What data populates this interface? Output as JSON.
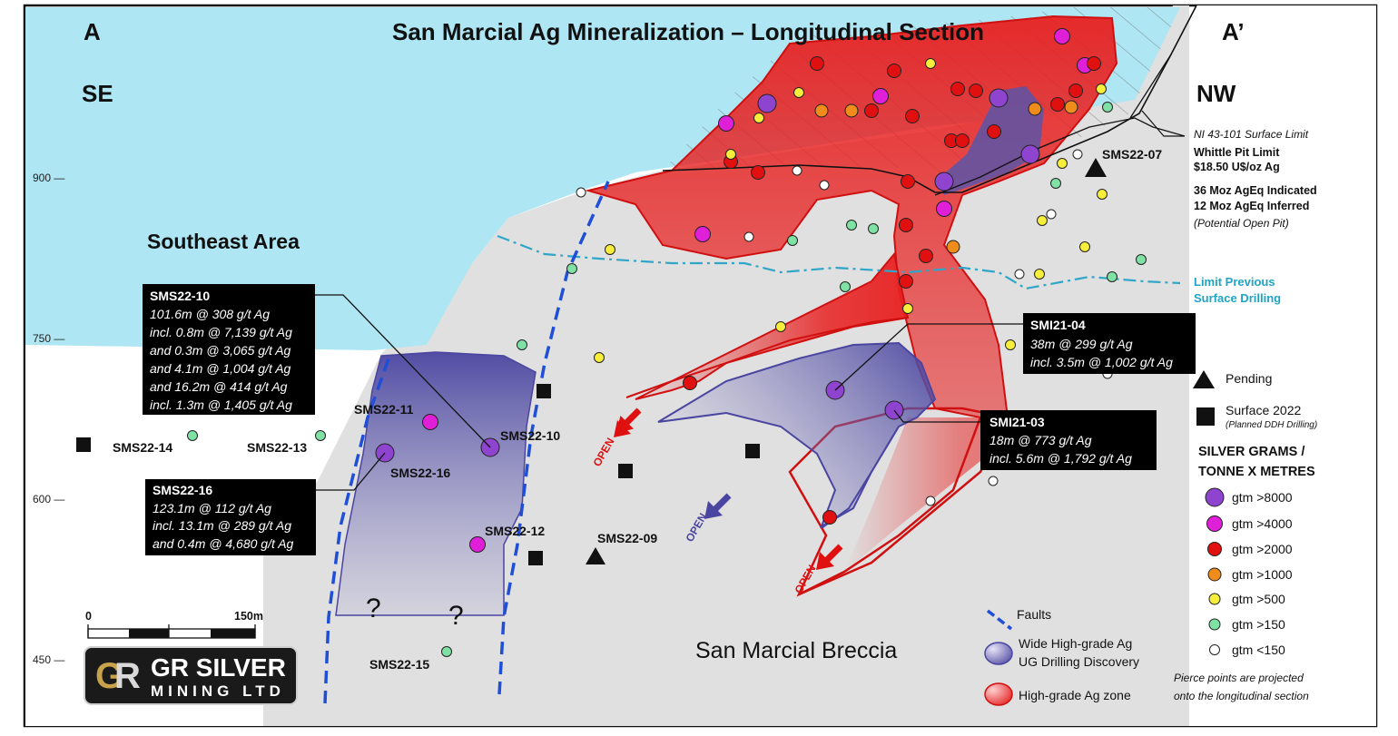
{
  "title": "San Marcial Ag Mineralization – Longitudinal Section",
  "corners": {
    "left": "A",
    "right": "A’",
    "left_dir": "SE",
    "right_dir": "NW"
  },
  "areas": {
    "southeast": "Southeast Area",
    "breccia": "San Marcial Breccia"
  },
  "elevations": [
    "900 —",
    "750 —",
    "600 —",
    "450 —"
  ],
  "scale": {
    "zero": "0",
    "end": "150m"
  },
  "logo": {
    "line1": "GR SILVER",
    "line2": "MINING LTD"
  },
  "pit_notes": {
    "surface_limit": "NI 43-101 Surface Limit",
    "whittle1": "Whittle Pit Limit",
    "whittle2": "$18.50 U$/oz Ag",
    "indicated": "36 Moz AgEq Indicated",
    "inferred": "12 Moz AgEq Inferred",
    "potential": "(Potential Open Pit)"
  },
  "limit_previous": {
    "line1": "Limit Previous",
    "line2": "Surface Drilling"
  },
  "holes": {
    "sms22_07": "SMS22-07",
    "sms22_11": "SMS22-11",
    "sms22_10": "SMS22-10",
    "sms22_16": "SMS22-16",
    "sms22_12": "SMS22-12",
    "sms22_09": "SMS22-09",
    "sms22_14": "SMS22-14",
    "sms22_13": "SMS22-13",
    "sms22_15": "SMS22-15"
  },
  "callouts": {
    "sms22_10": {
      "title": "SMS22-10",
      "lines": [
        "101.6m @ 308 g/t Ag",
        "incl.  0.8m @ 7,139 g/t Ag",
        "and  0.3m @ 3,065 g/t Ag",
        "and  4.1m @ 1,004 g/t Ag",
        "and  16.2m @ 414 g/t Ag",
        "incl.  1.3m @ 1,405 g/t Ag"
      ]
    },
    "sms22_16": {
      "title": "SMS22-16",
      "lines": [
        "123.1m @ 112 g/t Ag",
        "incl. 13.1m @ 289 g/t Ag",
        "and 0.4m @ 4,680 g/t Ag"
      ]
    },
    "smi21_04": {
      "title": "SMI21-04",
      "lines": [
        "38m @ 299 g/t Ag",
        "incl.  3.5m @ 1,002 g/t Ag"
      ]
    },
    "smi21_03": {
      "title": "SMI21-03",
      "lines": [
        "18m @ 773 g/t Ag",
        "incl. 5.6m @ 1,792 g/t Ag"
      ]
    }
  },
  "open_labels": [
    "OPEN",
    "OPEN",
    "OPEN"
  ],
  "question_marks": [
    "?",
    "?"
  ],
  "legend": {
    "pending": "Pending",
    "surface2022": "Surface 2022",
    "planned": "(Planned DDH Drilling)",
    "heading1": "SILVER GRAMS /",
    "heading2": "TONNE X METRES",
    "grades": [
      {
        "label": "gtm >8000",
        "color": "#8e44cf"
      },
      {
        "label": "gtm >4000",
        "color": "#e020d8"
      },
      {
        "label": "gtm >2000",
        "color": "#e01010"
      },
      {
        "label": "gtm >1000",
        "color": "#f08c1c"
      },
      {
        "label": "gtm >500",
        "color": "#f6ee3a"
      },
      {
        "label": "gtm >150",
        "color": "#7fe2a4"
      },
      {
        "label": "gtm <150",
        "color": "#ffffff"
      }
    ],
    "pierce1": "Pierce points are projected",
    "pierce2": "onto the longitudinal section",
    "faults": "Faults",
    "wide1": "Wide High-grade Ag",
    "wide2": "UG Drilling Discovery",
    "highgrade": "High-grade Ag zone"
  },
  "colors": {
    "sky": "#aee6f3",
    "ground": "#e0e0e0",
    "high_grade": "#e82020",
    "discovery": "#5a55a8",
    "fault": "#1e4fd6",
    "limit_line": "#2fa6c8"
  }
}
